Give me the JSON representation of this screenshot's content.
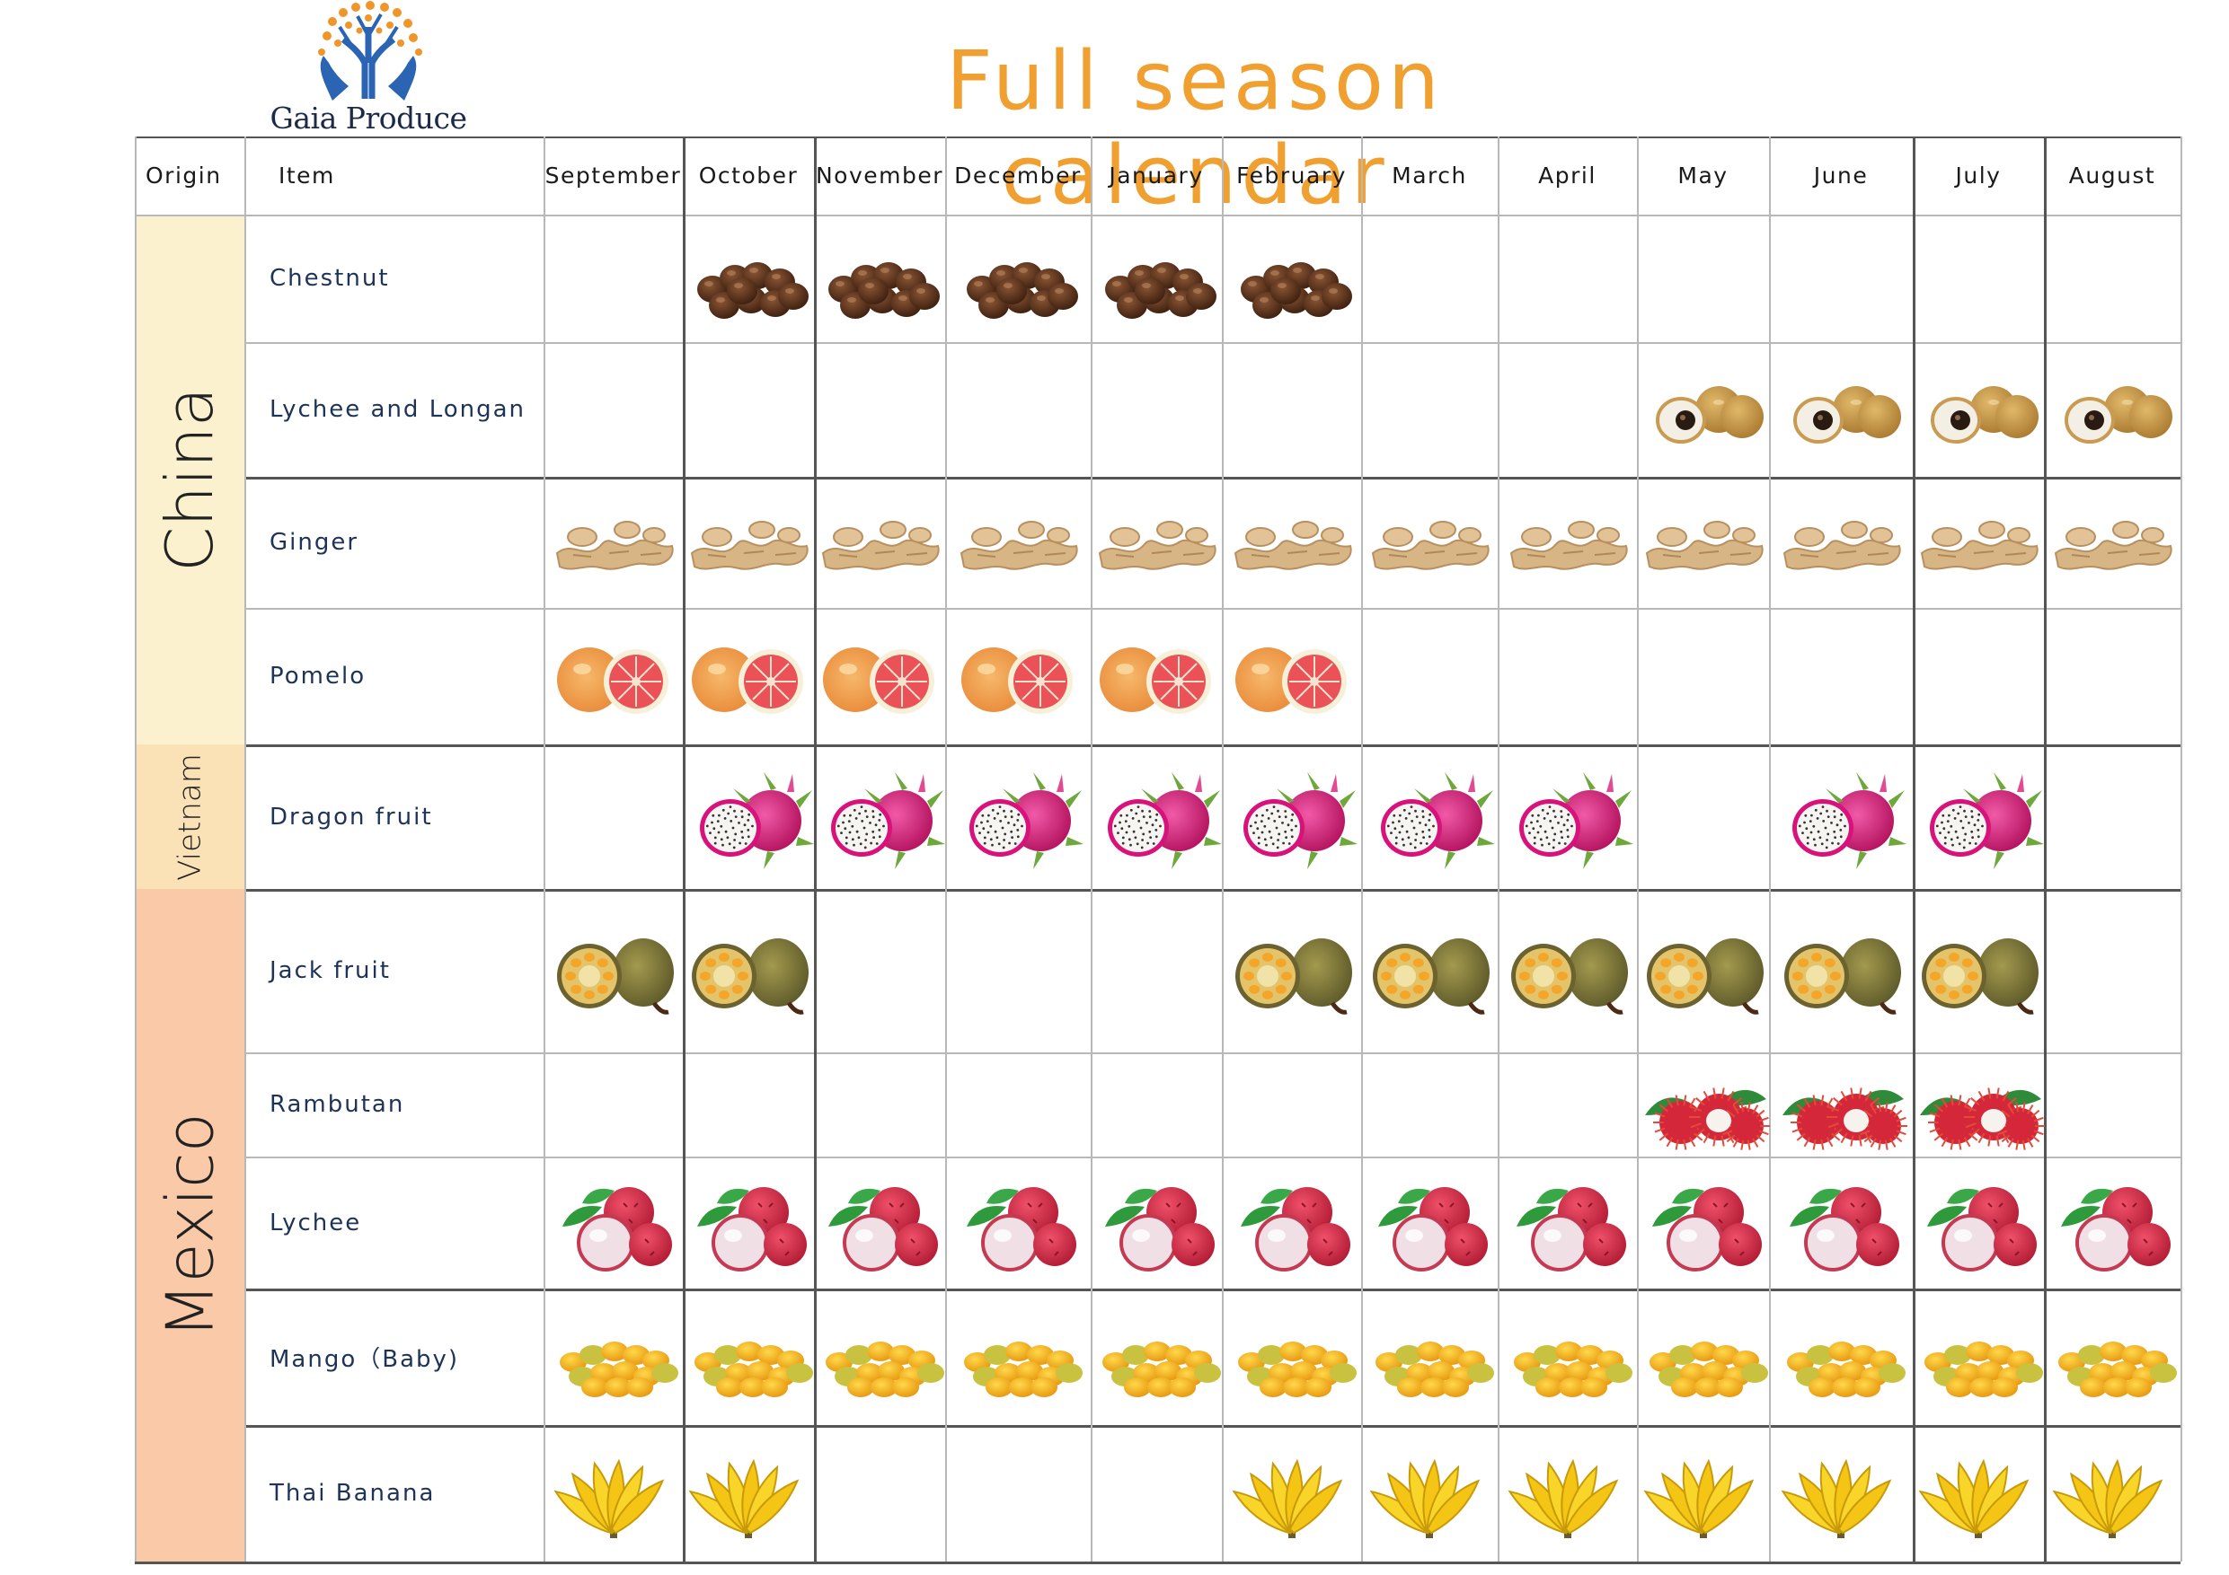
{
  "brand": {
    "name": "Gaia Produce"
  },
  "title": "Full season calendar",
  "header": {
    "origin_label": "Origin",
    "item_label": "Item"
  },
  "months": [
    "September",
    "October",
    "November",
    "December",
    "January",
    "February",
    "March",
    "April",
    "May",
    "June",
    "July",
    "August"
  ],
  "origins": [
    {
      "name": "China",
      "color": "#fbf1cf",
      "rows": [
        0,
        1,
        2,
        3
      ]
    },
    {
      "name": "Vietnam",
      "color": "#fbe2b6",
      "rows": [
        4
      ]
    },
    {
      "name": "Mexico",
      "color": "#f9c9a8",
      "rows": [
        5,
        6,
        7,
        8,
        9
      ]
    }
  ],
  "items": [
    {
      "name": "Chestnut",
      "icon": "chestnut-icon",
      "months": [
        1,
        2,
        3,
        4,
        5
      ]
    },
    {
      "name": "Lychee and Longan",
      "icon": "longan-icon",
      "months": [
        8,
        9,
        10,
        11
      ]
    },
    {
      "name": "Ginger",
      "icon": "ginger-icon",
      "months": [
        0,
        1,
        2,
        3,
        4,
        5,
        6,
        7,
        8,
        9,
        10,
        11
      ]
    },
    {
      "name": "Pomelo",
      "icon": "pomelo-icon",
      "months": [
        0,
        1,
        2,
        3,
        4,
        5
      ]
    },
    {
      "name": "Dragon fruit",
      "icon": "dragon-fruit-icon",
      "months": [
        1,
        2,
        3,
        4,
        5,
        6,
        7,
        9,
        10
      ]
    },
    {
      "name": "Jack fruit",
      "icon": "jackfruit-icon",
      "months": [
        0,
        1,
        5,
        6,
        7,
        8,
        9,
        10
      ]
    },
    {
      "name": "Rambutan",
      "icon": "rambutan-icon",
      "months": [
        8,
        9,
        10
      ]
    },
    {
      "name": "Lychee",
      "icon": "lychee-icon",
      "months": [
        0,
        1,
        2,
        3,
        4,
        5,
        6,
        7,
        8,
        9,
        10,
        11
      ]
    },
    {
      "name": "Mango（Baby)",
      "icon": "mango-icon",
      "months": [
        0,
        1,
        2,
        3,
        4,
        5,
        6,
        7,
        8,
        9,
        10,
        11
      ]
    },
    {
      "name": "Thai Banana",
      "icon": "banana-icon",
      "months": [
        0,
        1,
        5,
        6,
        7,
        8,
        9,
        10,
        11
      ]
    }
  ]
}
